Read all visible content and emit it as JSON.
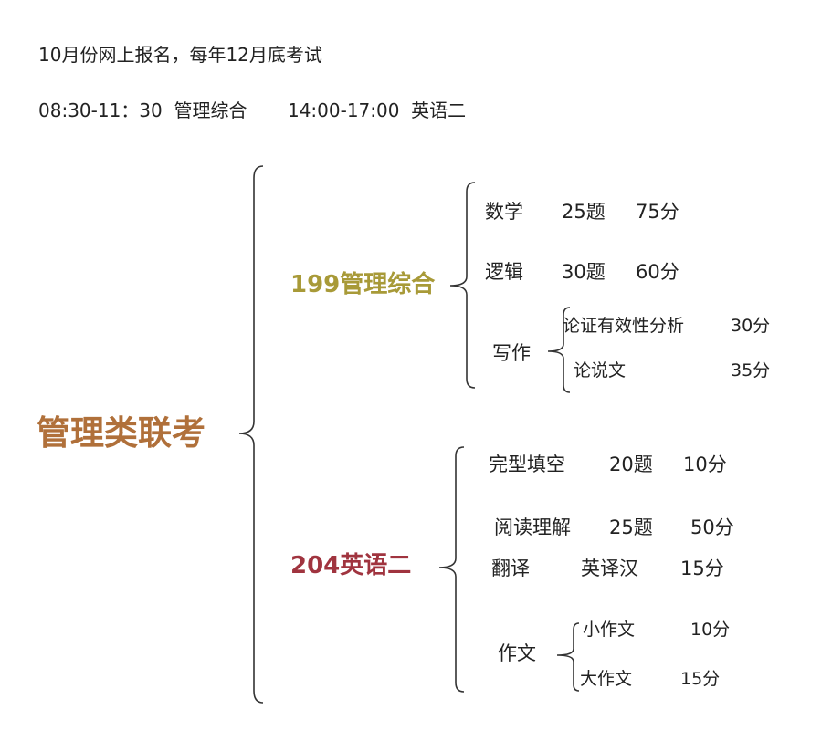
{
  "header": {
    "line1": "10月份网上报名，每年12月底考试",
    "line2": "08:30-11：30  管理综合       14:00-17:00  英语二"
  },
  "root": {
    "label": "管理类联考",
    "color": "#b0703a"
  },
  "branches": [
    {
      "label": "199管理综合",
      "color": "#a89a38",
      "items": [
        {
          "name": "数学",
          "count": "25题",
          "score": "75分"
        },
        {
          "name": "逻辑",
          "count": "30题",
          "score": "60分"
        },
        {
          "name": "写作",
          "children": [
            {
              "name": "论证有效性分析",
              "score": "30分"
            },
            {
              "name": "论说文",
              "score": "35分"
            }
          ]
        }
      ]
    },
    {
      "label": "204英语二",
      "color": "#a0343f",
      "items": [
        {
          "name": "完型填空",
          "count": "20题",
          "score": "10分"
        },
        {
          "name": "阅读理解",
          "count": "25题",
          "score": "50分"
        },
        {
          "name": "翻译",
          "count": "英译汉",
          "score": "15分"
        },
        {
          "name": "作文",
          "children": [
            {
              "name": "小作文",
              "score": "10分"
            },
            {
              "name": "大作文",
              "score": "15分"
            }
          ]
        }
      ]
    }
  ]
}
